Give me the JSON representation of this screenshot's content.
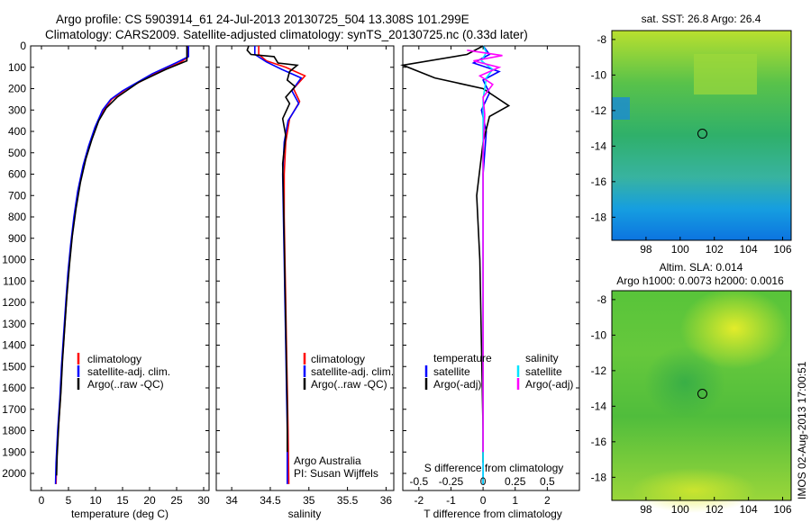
{
  "header": {
    "line1": "Argo profile: CS 5903914_61 24-Jul-2013 20130725_504 13.308S 101.299E",
    "line2": "Climatology: CARS2009. Satellite-adjusted climatology: synTS_20130725.nc (0.33d later)"
  },
  "footer": {
    "stamp": "IMOS 02-Aug-2013 17:00:51"
  },
  "colors": {
    "climatology": "#ff0000",
    "satellite": "#0000ff",
    "argo": "#000000",
    "sat_diff_T": "#0000ff",
    "argo_diff_T": "#000000",
    "sat_diff_S": "#00e5ff",
    "argo_diff_S": "#ff00ff"
  },
  "chart_data": [
    {
      "type": "line",
      "xlabel": "temperature (deg C)",
      "ylabel": "",
      "xlim": [
        -2,
        31
      ],
      "ylim": [
        2080,
        0
      ],
      "x_ticks": [
        "0",
        "5",
        "10",
        "15",
        "20",
        "25",
        "30"
      ],
      "y_ticks": [
        "0",
        "100",
        "200",
        "300",
        "400",
        "500",
        "600",
        "700",
        "800",
        "900",
        "1000",
        "1100",
        "1200",
        "1300",
        "1400",
        "1500",
        "1600",
        "1700",
        "1800",
        "1900",
        "2000"
      ],
      "legend": [
        "climatology",
        "satellite-adj. clim.",
        "Argo(..raw -QC)"
      ],
      "legend_position": "lower-middle",
      "series": [
        {
          "name": "climatology",
          "points": [
            [
              27,
              0
            ],
            [
              27,
              55
            ],
            [
              25.5,
              80
            ],
            [
              21,
              130
            ],
            [
              15.5,
              205
            ],
            [
              13,
              250
            ],
            [
              11.5,
              300
            ],
            [
              10,
              380
            ],
            [
              8.8,
              470
            ],
            [
              7.8,
              560
            ],
            [
              6.8,
              680
            ],
            [
              6.1,
              800
            ],
            [
              5.5,
              930
            ],
            [
              5,
              1060
            ],
            [
              4.6,
              1200
            ],
            [
              4.2,
              1350
            ],
            [
              3.8,
              1500
            ],
            [
              3.5,
              1650
            ],
            [
              3.1,
              1800
            ],
            [
              2.8,
              1950
            ],
            [
              2.7,
              2050
            ]
          ]
        },
        {
          "name": "satellite-adj. clim.",
          "points": [
            [
              27.2,
              0
            ],
            [
              27.2,
              50
            ],
            [
              25,
              78
            ],
            [
              20.5,
              130
            ],
            [
              15,
              210
            ],
            [
              12.8,
              250
            ],
            [
              11.3,
              300
            ],
            [
              9.9,
              380
            ],
            [
              8.7,
              470
            ],
            [
              7.7,
              560
            ],
            [
              6.7,
              680
            ],
            [
              6,
              800
            ],
            [
              5.4,
              930
            ],
            [
              4.9,
              1060
            ],
            [
              4.5,
              1200
            ],
            [
              4.1,
              1350
            ],
            [
              3.7,
              1500
            ],
            [
              3.4,
              1650
            ],
            [
              3,
              1800
            ],
            [
              2.7,
              1950
            ],
            [
              2.6,
              2050
            ]
          ]
        },
        {
          "name": "Argo(..raw -QC)",
          "points": [
            [
              26.9,
              0
            ],
            [
              26.9,
              70
            ],
            [
              23,
              110
            ],
            [
              18,
              170
            ],
            [
              14,
              240
            ],
            [
              12,
              290
            ],
            [
              10.6,
              350
            ],
            [
              9.3,
              440
            ],
            [
              8.2,
              530
            ],
            [
              7.2,
              640
            ],
            [
              6.4,
              760
            ],
            [
              5.7,
              890
            ],
            [
              5.2,
              1020
            ],
            [
              4.7,
              1170
            ],
            [
              4.3,
              1320
            ],
            [
              3.9,
              1470
            ],
            [
              3.6,
              1620
            ],
            [
              3.2,
              1770
            ],
            [
              2.9,
              1920
            ],
            [
              2.8,
              2010
            ]
          ]
        }
      ]
    },
    {
      "type": "line",
      "xlabel": "salinity",
      "ylabel": "",
      "xlim": [
        33.8,
        36.1
      ],
      "ylim": [
        2080,
        0
      ],
      "x_ticks": [
        "34",
        "34.5",
        "35",
        "35.5",
        "36"
      ],
      "legend": [
        "climatology",
        "satellite-adj. clim.",
        "Argo(..raw -QC)"
      ],
      "legend_position": "lower-middle",
      "annotations": [
        "Argo Australia",
        "PI: Susan Wijffels"
      ],
      "series": [
        {
          "name": "climatology",
          "points": [
            [
              34.35,
              0
            ],
            [
              34.35,
              40
            ],
            [
              34.45,
              70
            ],
            [
              34.7,
              100
            ],
            [
              34.95,
              140
            ],
            [
              34.8,
              200
            ],
            [
              34.88,
              260
            ],
            [
              34.75,
              340
            ],
            [
              34.7,
              450
            ],
            [
              34.68,
              600
            ],
            [
              34.68,
              800
            ],
            [
              34.69,
              1000
            ],
            [
              34.7,
              1200
            ],
            [
              34.71,
              1400
            ],
            [
              34.72,
              1600
            ],
            [
              34.73,
              1800
            ],
            [
              34.74,
              2050
            ]
          ]
        },
        {
          "name": "satellite-adj. clim.",
          "points": [
            [
              34.3,
              0
            ],
            [
              34.3,
              40
            ],
            [
              34.45,
              75
            ],
            [
              34.65,
              110
            ],
            [
              34.9,
              150
            ],
            [
              34.78,
              210
            ],
            [
              34.87,
              270
            ],
            [
              34.73,
              350
            ],
            [
              34.68,
              450
            ],
            [
              34.66,
              600
            ],
            [
              34.67,
              800
            ],
            [
              34.68,
              1000
            ],
            [
              34.69,
              1200
            ],
            [
              34.7,
              1400
            ],
            [
              34.71,
              1600
            ],
            [
              34.72,
              1800
            ],
            [
              34.72,
              2050
            ]
          ]
        },
        {
          "name": "Argo(..raw -QC)",
          "points": [
            [
              34.22,
              0
            ],
            [
              34.2,
              20
            ],
            [
              34.25,
              40
            ],
            [
              34.55,
              50
            ],
            [
              34.6,
              80
            ],
            [
              34.85,
              90
            ],
            [
              34.75,
              120
            ],
            [
              34.72,
              160
            ],
            [
              34.82,
              190
            ],
            [
              34.7,
              240
            ],
            [
              34.75,
              270
            ],
            [
              34.66,
              340
            ],
            [
              34.7,
              420
            ],
            [
              34.66,
              550
            ],
            [
              34.67,
              700
            ],
            [
              34.68,
              900
            ],
            [
              34.69,
              1100
            ],
            [
              34.7,
              1300
            ],
            [
              34.71,
              1500
            ],
            [
              34.72,
              1700
            ],
            [
              34.72,
              1900
            ]
          ]
        }
      ]
    },
    {
      "type": "line",
      "xlabel": "T difference from climatology",
      "x2label": "S difference from climatology",
      "xlim": [
        -2.5,
        3
      ],
      "ylim": [
        2080,
        0
      ],
      "x_ticks": [
        "-2",
        "-1",
        "0",
        "1",
        "2"
      ],
      "x2_ticks": [
        "-0.5",
        "-0.25",
        "0",
        "0.25",
        "0.5"
      ],
      "legend": [
        "temperature",
        "satellite",
        "Argo(-adj)",
        "salinity",
        "satellite",
        "Argo(-adj)"
      ],
      "legend_position": "lower-middle",
      "series": [
        {
          "name": "temperature satellite",
          "points": [
            [
              0,
              0
            ],
            [
              0.2,
              40
            ],
            [
              -0.3,
              80
            ],
            [
              0.5,
              120
            ],
            [
              0,
              160
            ],
            [
              0.2,
              220
            ],
            [
              -0.05,
              300
            ],
            [
              0.1,
              400
            ],
            [
              0,
              600
            ],
            [
              0,
              1000
            ],
            [
              0,
              1500
            ],
            [
              0,
              2050
            ]
          ]
        },
        {
          "name": "temperature Argo(-adj)",
          "points": [
            [
              0,
              0
            ],
            [
              -0.5,
              40
            ],
            [
              -2.5,
              90
            ],
            [
              -1.5,
              150
            ],
            [
              0,
              200
            ],
            [
              0.8,
              280
            ],
            [
              0.2,
              330
            ],
            [
              0,
              450
            ],
            [
              -0.2,
              700
            ],
            [
              -0.1,
              1000
            ],
            [
              -0.05,
              1400
            ],
            [
              0,
              1800
            ],
            [
              0,
              1950
            ]
          ]
        },
        {
          "name": "salinity satellite",
          "points": [
            [
              0,
              0
            ],
            [
              0.1,
              30
            ],
            [
              -0.05,
              70
            ],
            [
              0.3,
              110
            ],
            [
              0.1,
              150
            ],
            [
              0,
              250
            ],
            [
              0,
              500
            ],
            [
              0,
              1000
            ],
            [
              0,
              1500
            ],
            [
              0,
              2050
            ]
          ]
        },
        {
          "name": "salinity Argo(-adj)",
          "points": [
            [
              -0.5,
              20
            ],
            [
              0.6,
              45
            ],
            [
              -0.3,
              70
            ],
            [
              0.5,
              100
            ],
            [
              -0.1,
              140
            ],
            [
              0.3,
              180
            ],
            [
              0,
              240
            ],
            [
              0.05,
              320
            ],
            [
              0,
              500
            ],
            [
              0,
              900
            ],
            [
              0,
              1300
            ],
            [
              0,
              1700
            ],
            [
              0,
              1900
            ]
          ]
        }
      ]
    },
    {
      "type": "heatmap",
      "title": "sat. SST: 26.8  Argo: 26.4",
      "xlim": [
        96,
        106.5
      ],
      "ylim": [
        -19.3,
        -7.5
      ],
      "x_ticks": [
        "98",
        "100",
        "102",
        "104",
        "106"
      ],
      "y_ticks": [
        "-8",
        "-10",
        "-12",
        "-14",
        "-16",
        "-18"
      ],
      "marker": {
        "lon": 101.3,
        "lat": -13.3
      }
    },
    {
      "type": "heatmap",
      "title": "Altim. SLA: 0.014",
      "subtitle": "Argo h1000: 0.0073 h2000: 0.0016",
      "xlim": [
        96,
        106.5
      ],
      "ylim": [
        -19.3,
        -7.5
      ],
      "x_ticks": [
        "98",
        "100",
        "102",
        "104",
        "106"
      ],
      "y_ticks": [
        "-8",
        "-10",
        "-12",
        "-14",
        "-16",
        "-18"
      ],
      "marker": {
        "lon": 101.3,
        "lat": -13.3
      }
    }
  ]
}
